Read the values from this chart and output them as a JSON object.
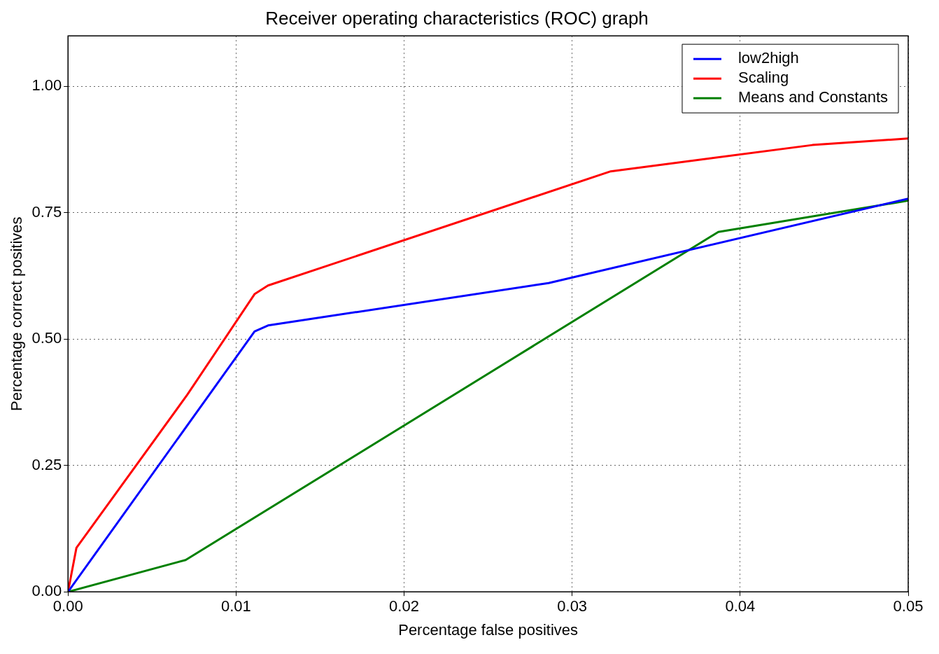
{
  "chart_data": {
    "type": "line",
    "title": "Receiver operating characteristics (ROC) graph",
    "xlabel": "Percentage false positives",
    "ylabel": "Percentage correct positives",
    "xlim": [
      0,
      0.05
    ],
    "ylim": [
      0,
      1.1
    ],
    "xticks": [
      {
        "value": 0,
        "label": "0.00"
      },
      {
        "value": 0.01,
        "label": "0.01"
      },
      {
        "value": 0.02,
        "label": "0.02"
      },
      {
        "value": 0.03,
        "label": "0.03"
      },
      {
        "value": 0.04,
        "label": "0.04"
      },
      {
        "value": 0.05,
        "label": "0.05"
      }
    ],
    "yticks": [
      {
        "value": 0,
        "label": "0.00"
      },
      {
        "value": 0.25,
        "label": "0.25"
      },
      {
        "value": 0.5,
        "label": "0.50"
      },
      {
        "value": 0.75,
        "label": "0.75"
      },
      {
        "value": 1,
        "label": "1.00"
      }
    ],
    "grid": true,
    "legend": "top right",
    "marker": "none",
    "line_style": "solid",
    "series": [
      {
        "name": "low2high",
        "color": "#0000ff",
        "x": [
          0,
          0.0111,
          0.0119,
          0.0286,
          0.05
        ],
        "values": [
          0,
          0.515,
          0.527,
          0.611,
          0.778
        ]
      },
      {
        "name": "Scaling",
        "color": "#ff0000",
        "x": [
          0,
          0.0005,
          0.0071,
          0.0111,
          0.0119,
          0.0323,
          0.0443,
          0.05
        ],
        "values": [
          0,
          0.087,
          0.39,
          0.589,
          0.606,
          0.832,
          0.884,
          0.897
        ]
      },
      {
        "name": "Means and Constants",
        "color": "#008000",
        "x": [
          0,
          0.007,
          0.0387,
          0.05
        ],
        "values": [
          0,
          0.063,
          0.712,
          0.774
        ]
      }
    ]
  }
}
